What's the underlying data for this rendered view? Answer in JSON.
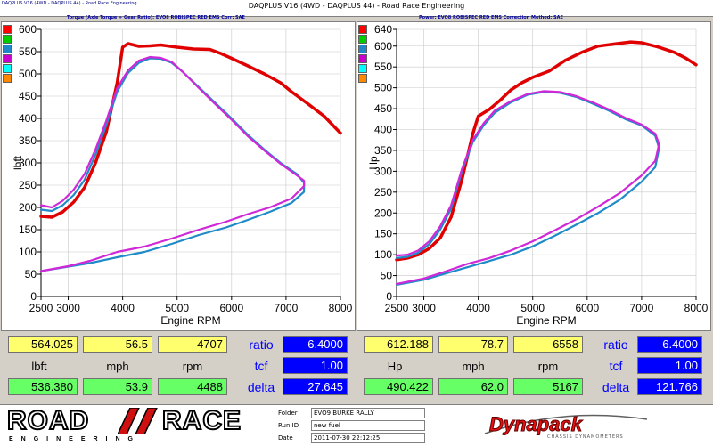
{
  "window": {
    "tab_title": "DAQPLUS V16 (4WD - DAQPLUS 44) - Road Race Engineering",
    "title": "DAQPLUS V16 (4WD - DAQPLUS 44) - Road Race Engineering"
  },
  "left_header": {
    "text": "Torque (Axle Torque ÷ Gear Ratio): EVO8 ROBISPEC RED EMS     Corr: SAE"
  },
  "right_header": {
    "text": "Power: EVO8 ROBISPEC RED EMS     Correction Method: SAE"
  },
  "swatch_colors": [
    "#ff0000",
    "#00cc00",
    "#1e88c8",
    "#cc00cc",
    "#00ffff",
    "#ff8800"
  ],
  "colors": {
    "run_red": "#e00000",
    "run_blue": "#1f8ac8",
    "run_magenta": "#d028d8"
  },
  "chart_data": [
    {
      "type": "line",
      "ylabel": "lbft",
      "xlabel": "Engine RPM",
      "xlim": [
        2500,
        8000
      ],
      "ylim": [
        0,
        600
      ],
      "x_ticks": [
        2500,
        3000,
        4000,
        5000,
        6000,
        7000,
        8000
      ],
      "y_ticks": [
        0,
        50,
        100,
        150,
        200,
        250,
        300,
        350,
        400,
        450,
        500,
        550,
        600
      ],
      "grid": true,
      "series": [
        {
          "color": "#e00000",
          "points": [
            [
              2500,
              180
            ],
            [
              2700,
              178
            ],
            [
              2900,
              190
            ],
            [
              3100,
              212
            ],
            [
              3300,
              245
            ],
            [
              3500,
              300
            ],
            [
              3700,
              370
            ],
            [
              3900,
              480
            ],
            [
              4000,
              560
            ],
            [
              4100,
              568
            ],
            [
              4300,
              562
            ],
            [
              4500,
              563
            ],
            [
              4700,
              565
            ],
            [
              5000,
              560
            ],
            [
              5300,
              556
            ],
            [
              5600,
              555
            ],
            [
              5800,
              546
            ],
            [
              6000,
              535
            ],
            [
              6300,
              518
            ],
            [
              6600,
              500
            ],
            [
              6900,
              480
            ],
            [
              7100,
              460
            ],
            [
              7400,
              433
            ],
            [
              7700,
              405
            ],
            [
              8000,
              367
            ]
          ]
        },
        {
          "color": "#1f8ac8",
          "points": [
            [
              2500,
              195
            ],
            [
              2700,
              192
            ],
            [
              2900,
              205
            ],
            [
              3100,
              228
            ],
            [
              3300,
              262
            ],
            [
              3500,
              318
            ],
            [
              3700,
              385
            ],
            [
              3900,
              460
            ],
            [
              4100,
              502
            ],
            [
              4300,
              525
            ],
            [
              4500,
              535
            ],
            [
              4700,
              534
            ],
            [
              4900,
              525
            ],
            [
              5100,
              505
            ],
            [
              5400,
              470
            ],
            [
              5700,
              435
            ],
            [
              6000,
              400
            ],
            [
              6300,
              363
            ],
            [
              6600,
              330
            ],
            [
              6900,
              300
            ],
            [
              7200,
              275
            ],
            [
              7330,
              255
            ],
            [
              7330,
              235
            ],
            [
              7100,
              210
            ],
            [
              6700,
              190
            ],
            [
              6300,
              172
            ],
            [
              5900,
              155
            ],
            [
              5400,
              138
            ],
            [
              4900,
              118
            ],
            [
              4400,
              100
            ],
            [
              3900,
              88
            ],
            [
              3400,
              75
            ],
            [
              3000,
              67
            ],
            [
              2500,
              57
            ]
          ]
        },
        {
          "color": "#d028d8",
          "points": [
            [
              2500,
              205
            ],
            [
              2700,
              200
            ],
            [
              2900,
              215
            ],
            [
              3100,
              240
            ],
            [
              3300,
              275
            ],
            [
              3500,
              330
            ],
            [
              3700,
              395
            ],
            [
              3900,
              468
            ],
            [
              4100,
              508
            ],
            [
              4300,
              530
            ],
            [
              4500,
              538
            ],
            [
              4700,
              536
            ],
            [
              4900,
              527
            ],
            [
              5100,
              505
            ],
            [
              5400,
              468
            ],
            [
              5700,
              432
            ],
            [
              6000,
              397
            ],
            [
              6300,
              360
            ],
            [
              6600,
              328
            ],
            [
              6900,
              298
            ],
            [
              7200,
              272
            ],
            [
              7330,
              260
            ],
            [
              7330,
              248
            ],
            [
              7100,
              220
            ],
            [
              6700,
              200
            ],
            [
              6300,
              185
            ],
            [
              5900,
              168
            ],
            [
              5400,
              150
            ],
            [
              4900,
              130
            ],
            [
              4400,
              112
            ],
            [
              3900,
              100
            ],
            [
              3400,
              80
            ],
            [
              3000,
              68
            ],
            [
              2500,
              57
            ]
          ]
        }
      ]
    },
    {
      "type": "line",
      "ylabel": "Hp",
      "xlabel": "Engine RPM",
      "xlim": [
        2500,
        8000
      ],
      "ylim": [
        0,
        640
      ],
      "x_ticks": [
        2500,
        3000,
        4000,
        5000,
        6000,
        7000,
        8000
      ],
      "y_ticks": [
        0,
        50,
        100,
        150,
        200,
        250,
        300,
        350,
        400,
        450,
        500,
        550,
        600,
        640
      ],
      "grid": true,
      "series": [
        {
          "color": "#e00000",
          "points": [
            [
              2500,
              88
            ],
            [
              2700,
              92
            ],
            [
              2900,
              100
            ],
            [
              3100,
              115
            ],
            [
              3300,
              140
            ],
            [
              3500,
              190
            ],
            [
              3700,
              280
            ],
            [
              3900,
              390
            ],
            [
              4000,
              432
            ],
            [
              4200,
              448
            ],
            [
              4400,
              470
            ],
            [
              4600,
              495
            ],
            [
              4800,
              512
            ],
            [
              5000,
              525
            ],
            [
              5300,
              540
            ],
            [
              5600,
              566
            ],
            [
              5900,
              585
            ],
            [
              6200,
              600
            ],
            [
              6500,
              605
            ],
            [
              6800,
              610
            ],
            [
              7000,
              608
            ],
            [
              7300,
              598
            ],
            [
              7600,
              585
            ],
            [
              7800,
              572
            ],
            [
              8000,
              555
            ]
          ]
        },
        {
          "color": "#1f8ac8",
          "points": [
            [
              2500,
              92
            ],
            [
              2700,
              95
            ],
            [
              2900,
              105
            ],
            [
              3100,
              125
            ],
            [
              3300,
              160
            ],
            [
              3500,
              210
            ],
            [
              3700,
              300
            ],
            [
              3900,
              370
            ],
            [
              4100,
              410
            ],
            [
              4300,
              440
            ],
            [
              4600,
              465
            ],
            [
              4900,
              483
            ],
            [
              5200,
              490
            ],
            [
              5500,
              488
            ],
            [
              5800,
              478
            ],
            [
              6100,
              462
            ],
            [
              6400,
              445
            ],
            [
              6700,
              425
            ],
            [
              7000,
              410
            ],
            [
              7250,
              385
            ],
            [
              7320,
              355
            ],
            [
              7250,
              310
            ],
            [
              7000,
              275
            ],
            [
              6600,
              232
            ],
            [
              6200,
              200
            ],
            [
              5800,
              172
            ],
            [
              5400,
              145
            ],
            [
              5000,
              120
            ],
            [
              4600,
              100
            ],
            [
              4200,
              85
            ],
            [
              3800,
              70
            ],
            [
              3400,
              55
            ],
            [
              3000,
              40
            ],
            [
              2500,
              28
            ]
          ]
        },
        {
          "color": "#d028d8",
          "points": [
            [
              2500,
              98
            ],
            [
              2700,
              100
            ],
            [
              2900,
              110
            ],
            [
              3100,
              132
            ],
            [
              3300,
              168
            ],
            [
              3500,
              218
            ],
            [
              3700,
              305
            ],
            [
              3900,
              375
            ],
            [
              4100,
              415
            ],
            [
              4300,
              445
            ],
            [
              4600,
              468
            ],
            [
              4900,
              485
            ],
            [
              5200,
              492
            ],
            [
              5500,
              490
            ],
            [
              5800,
              480
            ],
            [
              6100,
              465
            ],
            [
              6400,
              448
            ],
            [
              6700,
              428
            ],
            [
              7000,
              412
            ],
            [
              7250,
              390
            ],
            [
              7320,
              365
            ],
            [
              7250,
              325
            ],
            [
              7000,
              290
            ],
            [
              6600,
              248
            ],
            [
              6200,
              215
            ],
            [
              5800,
              185
            ],
            [
              5400,
              158
            ],
            [
              5000,
              132
            ],
            [
              4600,
              110
            ],
            [
              4200,
              92
            ],
            [
              3800,
              78
            ],
            [
              3400,
              60
            ],
            [
              3000,
              43
            ],
            [
              2500,
              30
            ]
          ]
        }
      ]
    }
  ],
  "readouts": {
    "left": {
      "val1": "564.025",
      "mph1": "56.5",
      "rpm1": "4707",
      "unit": "lbft",
      "mph_label": "mph",
      "rpm_label": "rpm",
      "val2": "536.380",
      "mph2": "53.9",
      "rpm2": "4488",
      "ratio_label": "ratio",
      "ratio": "6.4000",
      "tcf_label": "tcf",
      "tcf": "1.00",
      "delta_label": "delta",
      "delta": "27.645"
    },
    "right": {
      "val1": "612.188",
      "mph1": "78.7",
      "rpm1": "6558",
      "unit": "Hp",
      "mph_label": "mph",
      "rpm_label": "rpm",
      "val2": "490.422",
      "mph2": "62.0",
      "rpm2": "5167",
      "ratio_label": "ratio",
      "ratio": "6.4000",
      "tcf_label": "tcf",
      "tcf": "1.00",
      "delta_label": "delta",
      "delta": "121.766"
    }
  },
  "footer": {
    "logo_left_1": "ROAD",
    "logo_left_2": "RACE",
    "logo_sub": "ENGINEERING",
    "folder_label": "Folder",
    "folder": "EVO9 BURKE RALLY",
    "runid_label": "Run ID",
    "runid": "new fuel",
    "date_label": "Date",
    "date": "2011-07-30 22:12:25",
    "logo_right": "Dynapack",
    "logo_right_sub": "CHASSIS DYNAMOMETERS"
  }
}
